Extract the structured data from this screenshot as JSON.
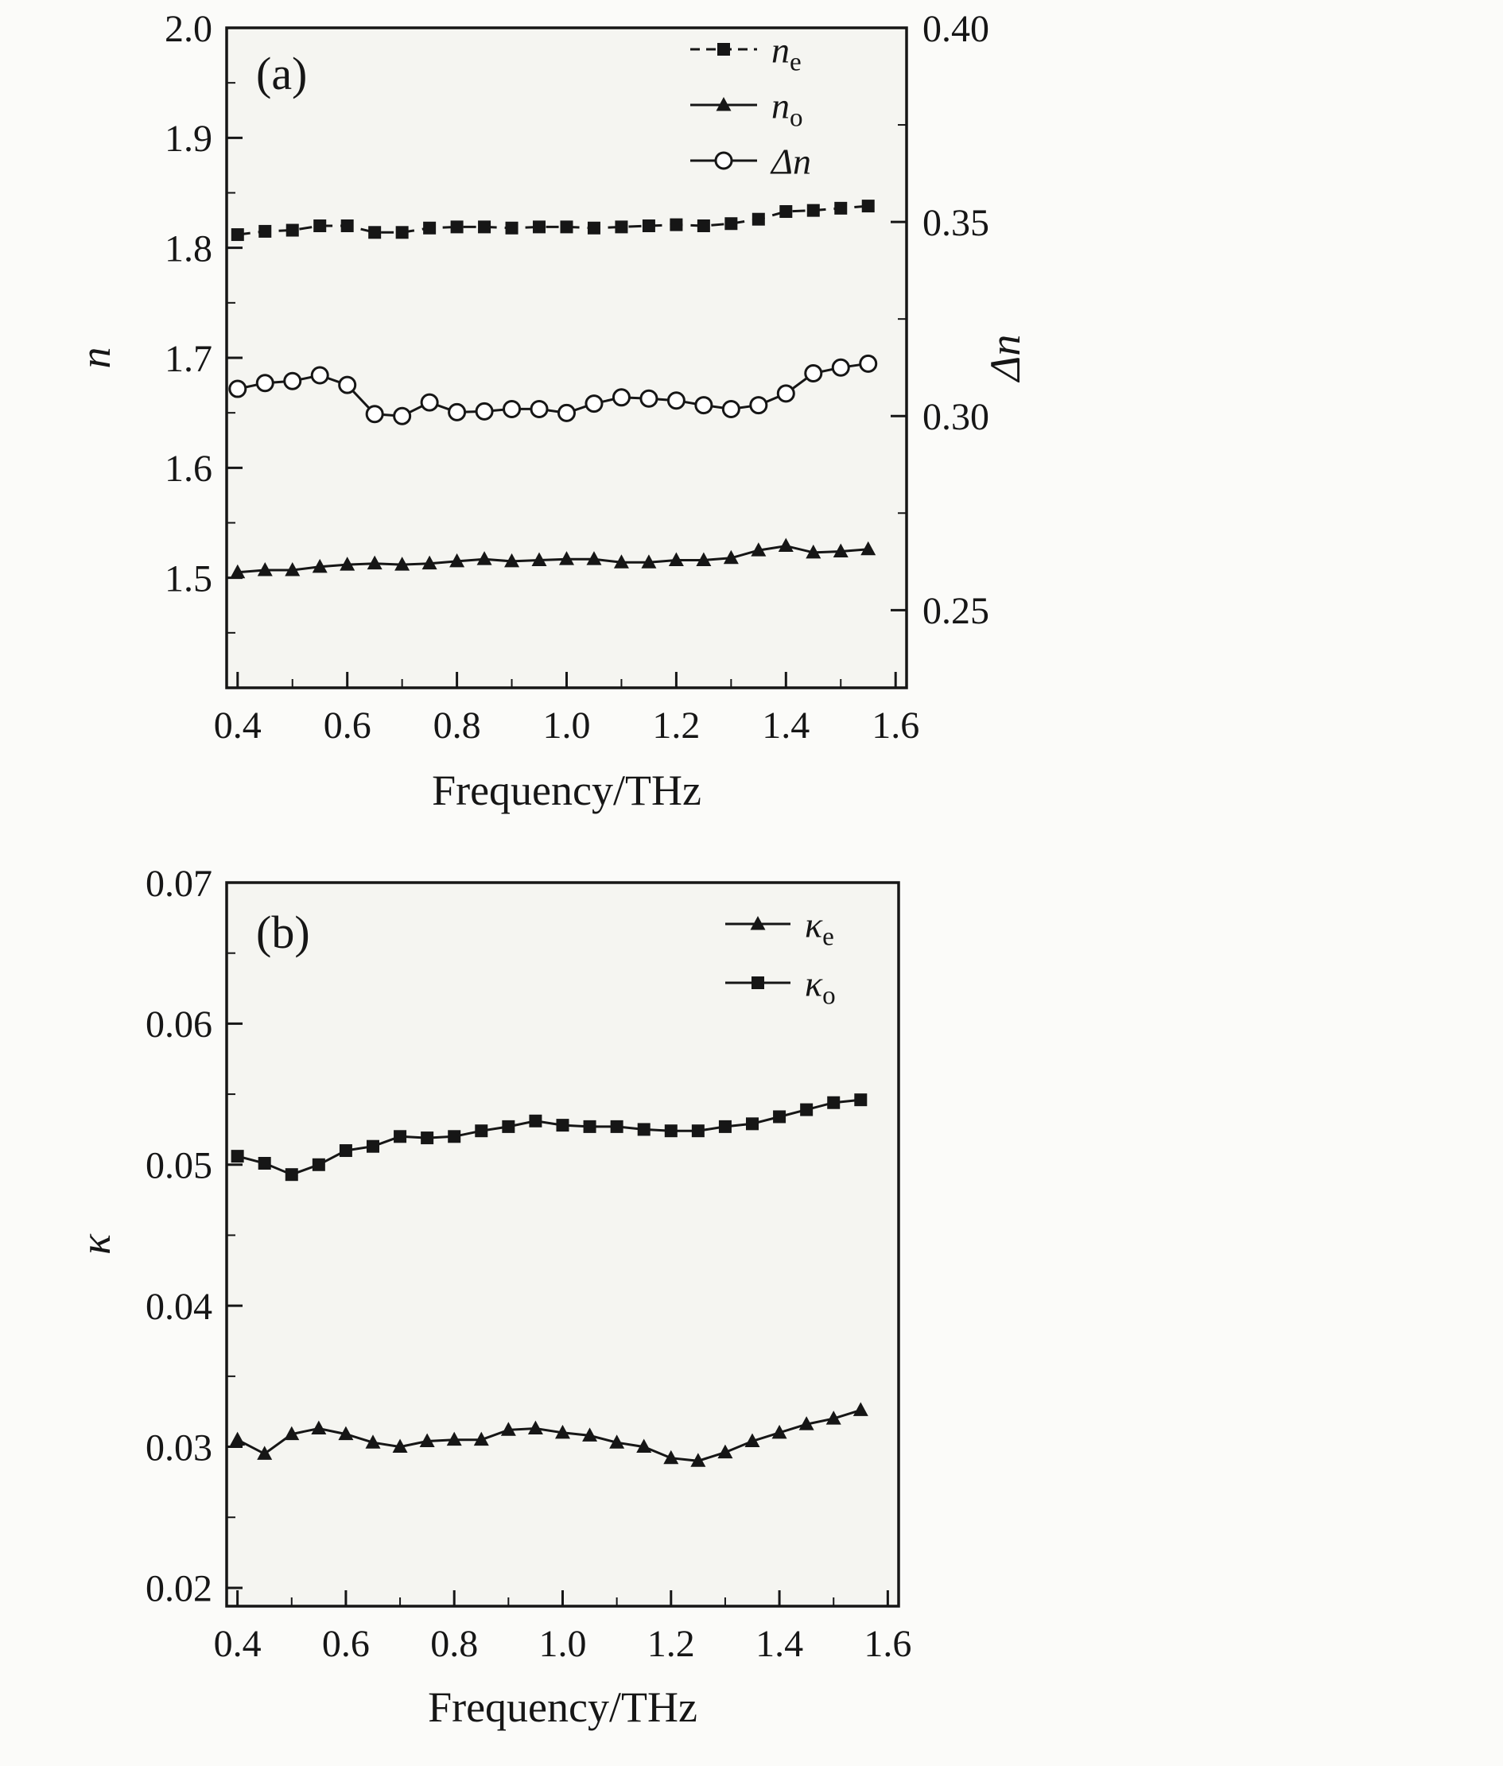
{
  "figure": {
    "panel_a_label": "(a)",
    "panel_b_label": "(b)"
  },
  "style": {
    "foreground": "#161616",
    "page_bg": "#fbfbf9",
    "plot_bg": "#f5f5f1",
    "open_marker_fill": "#ffffff"
  },
  "chart_data": [
    {
      "id": "a",
      "type": "line",
      "panel_label": "(a)",
      "xlabel": "Frequency/THz",
      "ylabel": "n",
      "y2label": "Δn",
      "xlim": [
        0.38,
        1.62
      ],
      "ylim": [
        1.4,
        2.0
      ],
      "y2lim": [
        0.23,
        0.4
      ],
      "xticks": [
        "0.4",
        "0.6",
        "0.8",
        "1.0",
        "1.2",
        "1.4",
        "1.6"
      ],
      "yticks": [
        "1.5",
        "1.6",
        "1.7",
        "1.8",
        "1.9",
        "2.0"
      ],
      "y2ticks": [
        "0.25",
        "0.30",
        "0.35",
        "0.40"
      ],
      "grid": false,
      "legend_position": "top-right",
      "x": [
        0.4,
        0.45,
        0.5,
        0.55,
        0.6,
        0.65,
        0.7,
        0.75,
        0.8,
        0.85,
        0.9,
        0.95,
        1.0,
        1.05,
        1.1,
        1.15,
        1.2,
        1.25,
        1.3,
        1.35,
        1.4,
        1.45,
        1.5,
        1.55
      ],
      "series": [
        {
          "name": "ne",
          "label_main": "n",
          "label_sub": "e",
          "axis": "left",
          "marker": "square",
          "dash": [
            16,
            10
          ],
          "values": [
            1.812,
            1.815,
            1.816,
            1.82,
            1.82,
            1.814,
            1.814,
            1.818,
            1.819,
            1.819,
            1.818,
            1.819,
            1.819,
            1.818,
            1.819,
            1.82,
            1.821,
            1.82,
            1.822,
            1.826,
            1.833,
            1.834,
            1.836,
            1.838
          ]
        },
        {
          "name": "no",
          "label_main": "n",
          "label_sub": "o",
          "axis": "left",
          "marker": "triangle",
          "dash": null,
          "values": [
            1.505,
            1.507,
            1.507,
            1.51,
            1.512,
            1.513,
            1.512,
            1.513,
            1.515,
            1.517,
            1.515,
            1.516,
            1.517,
            1.517,
            1.514,
            1.514,
            1.516,
            1.516,
            1.518,
            1.525,
            1.529,
            1.523,
            1.524,
            1.526
          ]
        },
        {
          "name": "dn",
          "label_main": "Δn",
          "label_sub": "",
          "axis": "right",
          "marker": "circle-open",
          "dash": null,
          "values": [
            0.307,
            0.3085,
            0.309,
            0.3105,
            0.308,
            0.3005,
            0.3,
            0.3035,
            0.301,
            0.3012,
            0.3018,
            0.3018,
            0.3008,
            0.3032,
            0.3048,
            0.3045,
            0.304,
            0.3028,
            0.3018,
            0.3028,
            0.3058,
            0.311,
            0.3125,
            0.3135
          ]
        }
      ]
    },
    {
      "id": "b",
      "type": "line",
      "panel_label": "(b)",
      "xlabel": "Frequency/THz",
      "ylabel": "κ",
      "y2label": null,
      "xlim": [
        0.38,
        1.62
      ],
      "ylim": [
        0.0187,
        0.07
      ],
      "y2lim": null,
      "xticks": [
        "0.4",
        "0.6",
        "0.8",
        "1.0",
        "1.2",
        "1.4",
        "1.6"
      ],
      "yticks": [
        "0.02",
        "0.03",
        "0.04",
        "0.05",
        "0.06",
        "0.07"
      ],
      "y2ticks": null,
      "grid": false,
      "legend_position": "top-right",
      "x": [
        0.4,
        0.45,
        0.5,
        0.55,
        0.6,
        0.65,
        0.7,
        0.75,
        0.8,
        0.85,
        0.9,
        0.95,
        1.0,
        1.05,
        1.1,
        1.15,
        1.2,
        1.25,
        1.3,
        1.35,
        1.4,
        1.45,
        1.5,
        1.55
      ],
      "series": [
        {
          "name": "ke",
          "label_main": "κ",
          "label_sub": "e",
          "axis": "left",
          "marker": "triangle",
          "dash": null,
          "values": [
            0.0305,
            0.0295,
            0.0309,
            0.0313,
            0.0309,
            0.0303,
            0.03,
            0.0304,
            0.0305,
            0.0305,
            0.0312,
            0.0313,
            0.031,
            0.0308,
            0.0303,
            0.03,
            0.0292,
            0.029,
            0.0296,
            0.0304,
            0.031,
            0.0316,
            0.032,
            0.0326
          ]
        },
        {
          "name": "ko",
          "label_main": "κ",
          "label_sub": "o",
          "axis": "left",
          "marker": "square",
          "dash": null,
          "values": [
            0.0506,
            0.0501,
            0.0493,
            0.05,
            0.051,
            0.0513,
            0.052,
            0.0519,
            0.052,
            0.0524,
            0.0527,
            0.0531,
            0.0528,
            0.0527,
            0.0527,
            0.0525,
            0.0524,
            0.0524,
            0.0527,
            0.0529,
            0.0534,
            0.0539,
            0.0544,
            0.0546
          ]
        }
      ]
    }
  ]
}
